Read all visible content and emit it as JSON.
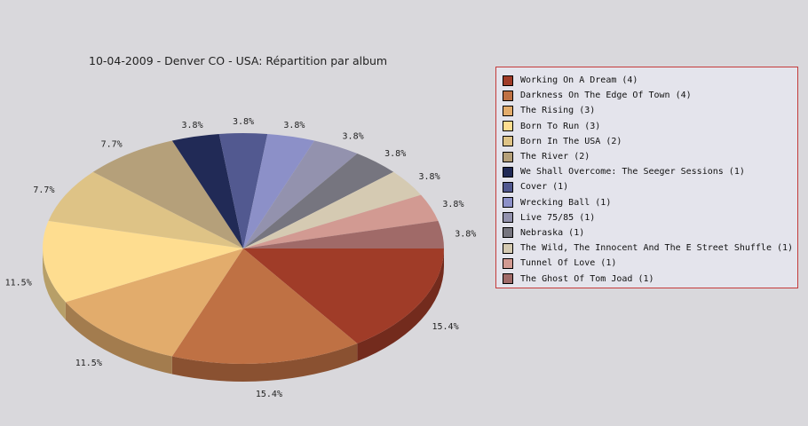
{
  "chart_data": {
    "type": "pie",
    "title": "10-04-2009 - Denver CO - USA:  Répartition par album",
    "slices": [
      {
        "label": "Working On A Dream (4)",
        "value": 4,
        "percent_label": "15.4%",
        "color": "#a03c28"
      },
      {
        "label": "Darkness On The Edge Of Town (4)",
        "value": 4,
        "percent_label": "15.4%",
        "color": "#bf7144"
      },
      {
        "label": "The Rising (3)",
        "value": 3,
        "percent_label": "11.5%",
        "color": "#e2ac6c"
      },
      {
        "label": "Born To Run (3)",
        "value": 3,
        "percent_label": "11.5%",
        "color": "#fedd90"
      },
      {
        "label": "Born In The USA (2)",
        "value": 2,
        "percent_label": "7.7%",
        "color": "#dec386"
      },
      {
        "label": "The River (2)",
        "value": 2,
        "percent_label": "7.7%",
        "color": "#b5a07a"
      },
      {
        "label": "We Shall Overcome: The Seeger Sessions (1)",
        "value": 1,
        "percent_label": "3.8%",
        "color": "#212a56"
      },
      {
        "label": "Cover (1)",
        "value": 1,
        "percent_label": "3.8%",
        "color": "#525990"
      },
      {
        "label": "Wrecking Ball (1)",
        "value": 1,
        "percent_label": "3.8%",
        "color": "#8c90c8"
      },
      {
        "label": "Live 75/85 (1)",
        "value": 1,
        "percent_label": "3.8%",
        "color": "#9392ae"
      },
      {
        "label": "Nebraska (1)",
        "value": 1,
        "percent_label": "3.8%",
        "color": "#76757f"
      },
      {
        "label": "The Wild, The Innocent And The E Street Shuffle (1)",
        "value": 1,
        "percent_label": "3.8%",
        "color": "#d5cab2"
      },
      {
        "label": "Tunnel Of Love (1)",
        "value": 1,
        "percent_label": "3.8%",
        "color": "#d29a92"
      },
      {
        "label": "The Ghost Of Tom Joad (1)",
        "value": 1,
        "percent_label": "3.8%",
        "color": "#a06a68"
      }
    ],
    "legend_position": "right",
    "style": "3d-pie"
  }
}
